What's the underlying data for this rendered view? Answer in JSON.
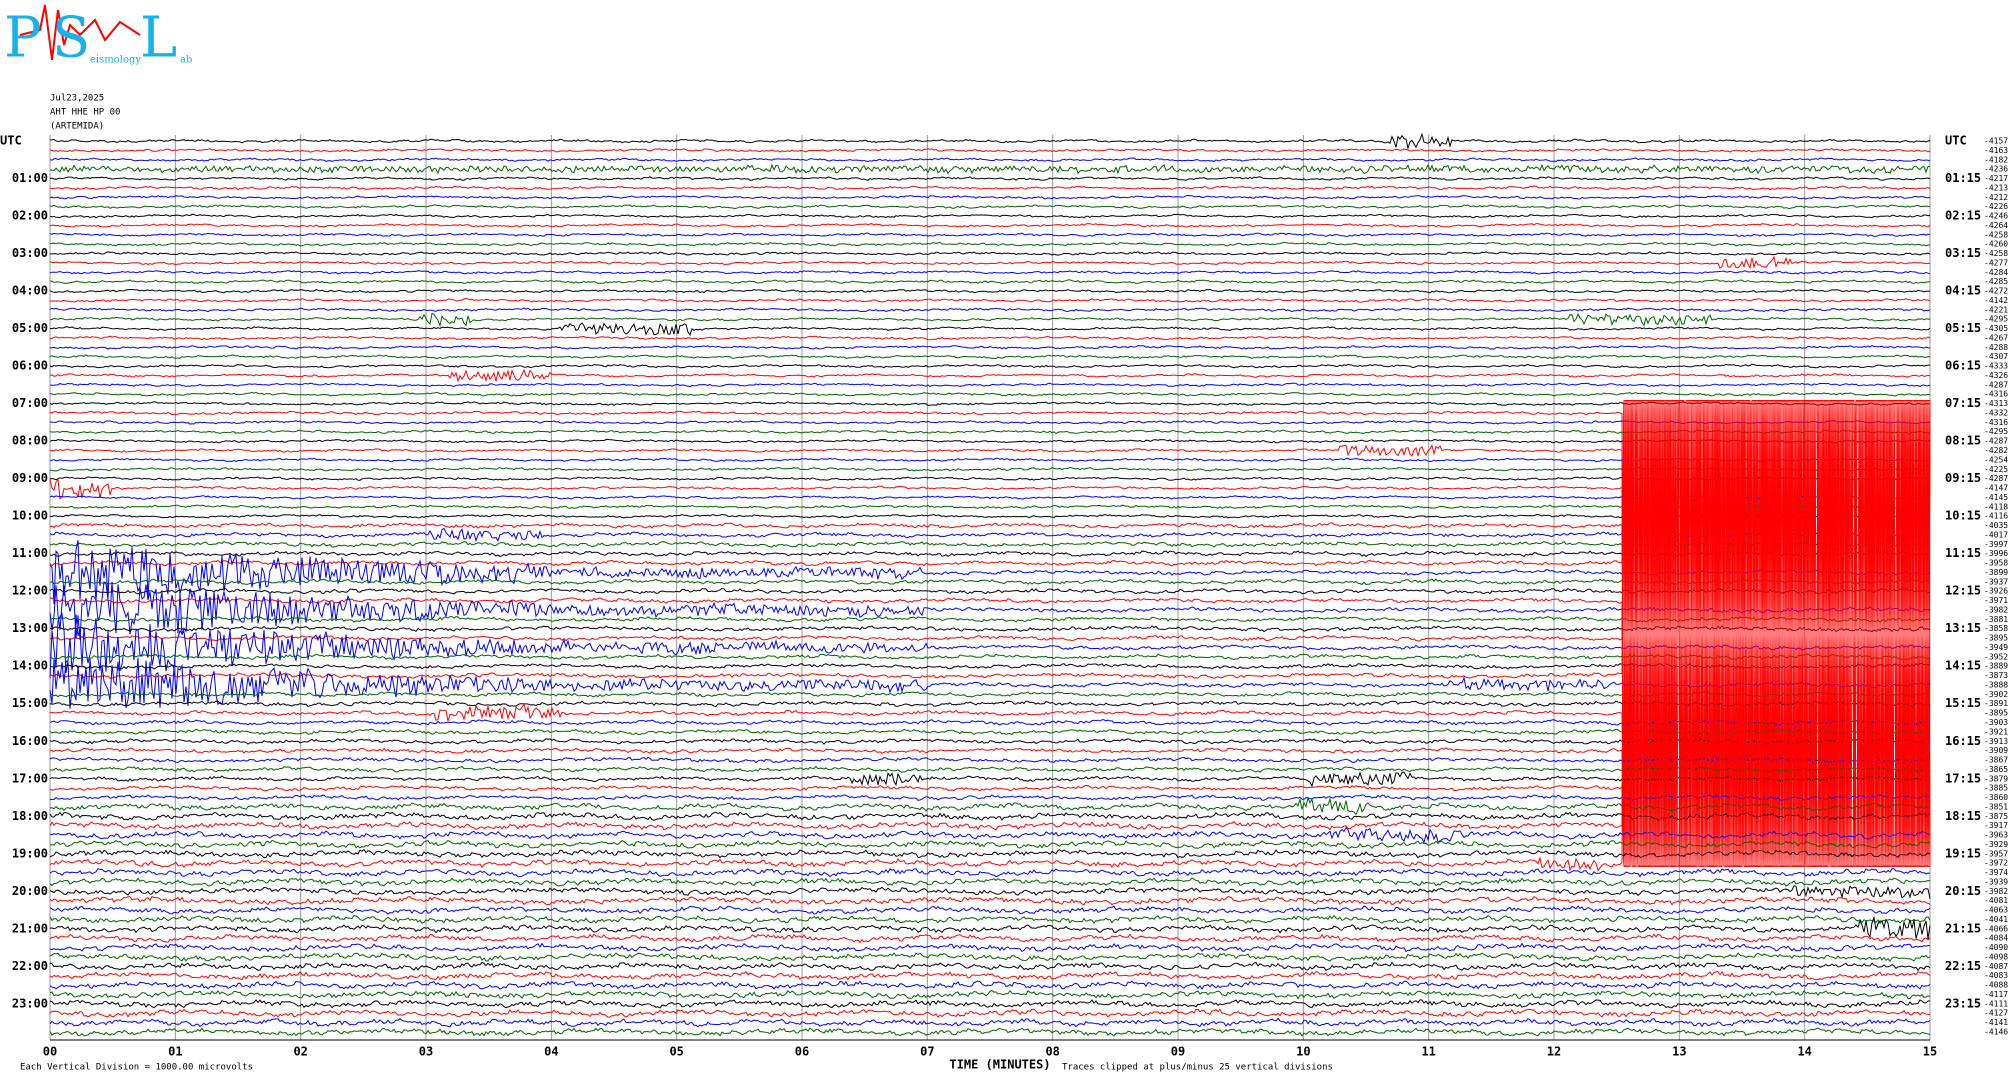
{
  "header": {
    "logo": {
      "letters": [
        "P",
        "S",
        "L"
      ],
      "small": [
        "eismology",
        "ab"
      ]
    },
    "date": "Jul23,2025",
    "station": "AHT HHE HP 00",
    "site": "(ARTEMIDA)"
  },
  "chart_data": {
    "type": "helicorder",
    "xlabel": "TIME (MINUTES)",
    "note_left": "Each Vertical Division = 1000.00 microvolts",
    "note_right": "Traces clipped at plus/minus 25 vertical divisions",
    "xlim": [
      0,
      15
    ],
    "xticks": [
      {
        "value": 0,
        "label": "00"
      },
      {
        "value": 1,
        "label": "01"
      },
      {
        "value": 2,
        "label": "02"
      },
      {
        "value": 3,
        "label": "03"
      },
      {
        "value": 4,
        "label": "04"
      },
      {
        "value": 5,
        "label": "05"
      },
      {
        "value": 6,
        "label": "06"
      },
      {
        "value": 7,
        "label": "07"
      },
      {
        "value": 8,
        "label": "08"
      },
      {
        "value": 9,
        "label": "09"
      },
      10,
      11,
      12,
      13,
      14,
      15
    ],
    "grid": true,
    "trace_colors": [
      "#000000",
      "#ff0000",
      "#0000ff",
      "#006400"
    ],
    "left_labels": [
      "UTC",
      "01:00",
      "02:00",
      "03:00",
      "04:00",
      "05:00",
      "06:00",
      "07:00",
      "08:00",
      "09:00",
      "10:00",
      "11:00",
      "12:00",
      "13:00",
      "14:00",
      "15:00",
      "16:00",
      "17:00",
      "18:00",
      "19:00",
      "20:00",
      "21:00",
      "22:00",
      "23:00"
    ],
    "right_labels": [
      "UTC",
      "01:15",
      "02:15",
      "03:15",
      "04:15",
      "05:15",
      "06:15",
      "07:15",
      "08:15",
      "09:15",
      "10:15",
      "11:15",
      "12:15",
      "13:15",
      "14:15",
      "15:15",
      "16:15",
      "17:15",
      "18:15",
      "19:15",
      "20:15",
      "21:15",
      "22:15",
      "23:15"
    ],
    "trace_offsets": [
      -4157,
      -4163,
      -4182,
      -4236,
      -4217,
      -4213,
      -4212,
      -4226,
      -4246,
      -4264,
      -4258,
      -4260,
      -4258,
      -4277,
      -4284,
      -4285,
      -4272,
      -4142,
      -4221,
      -4295,
      -4305,
      -4267,
      -4288,
      -4307,
      -4333,
      -4326,
      -4287,
      -4316,
      -4313,
      -4332,
      -4316,
      -4295,
      -4287,
      -4282,
      -4254,
      -4225,
      -4287,
      -4147,
      -4145,
      -4118,
      -4116,
      -4035,
      -4017,
      -3997,
      -3996,
      -3958,
      -3899,
      -3937,
      -3926,
      -3971,
      -3982,
      -3881,
      -3858,
      -3895,
      -3949,
      -3952,
      -3889,
      -3873,
      -3888,
      -3902,
      -3891,
      -3895,
      -3903,
      -3921,
      -3913,
      -3909,
      -3867,
      -3865,
      -3879,
      -3885,
      -3860,
      -3851,
      -3875,
      -3917,
      -3963,
      -3929,
      -3957,
      -3972,
      -3974,
      -3939,
      -3982,
      -4081,
      -4063,
      -4041,
      -4066,
      -4084,
      -4090,
      -4098,
      -4087,
      -4083,
      -4088,
      -4117,
      -4111,
      -4127,
      -4141,
      -4146
    ]
  }
}
